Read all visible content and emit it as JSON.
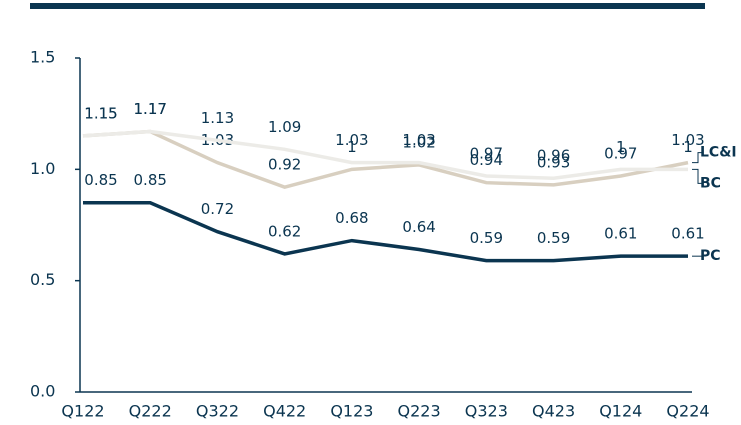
{
  "chart_data": {
    "type": "line",
    "categories": [
      "Q122",
      "Q222",
      "Q322",
      "Q422",
      "Q123",
      "Q223",
      "Q323",
      "Q423",
      "Q124",
      "Q224"
    ],
    "series": [
      {
        "name": "LC&I",
        "color": "#d8cfc0",
        "values": [
          1.15,
          1.17,
          1.03,
          0.92,
          1.0,
          1.02,
          0.94,
          0.93,
          0.97,
          1.03
        ]
      },
      {
        "name": "BC",
        "color": "#ecebe7",
        "values": [
          1.15,
          1.17,
          1.13,
          1.09,
          1.03,
          1.03,
          0.97,
          0.96,
          1.0,
          1.0
        ]
      },
      {
        "name": "PC",
        "color": "#0b3550",
        "values": [
          0.85,
          0.85,
          0.72,
          0.62,
          0.68,
          0.64,
          0.59,
          0.59,
          0.61,
          0.61
        ]
      }
    ],
    "ylim": [
      0,
      1.5
    ],
    "yticks": [
      {
        "value": 0,
        "label": "0.0"
      },
      0.5,
      {
        "value": 1,
        "label": "1.0"
      },
      1.5
    ]
  }
}
